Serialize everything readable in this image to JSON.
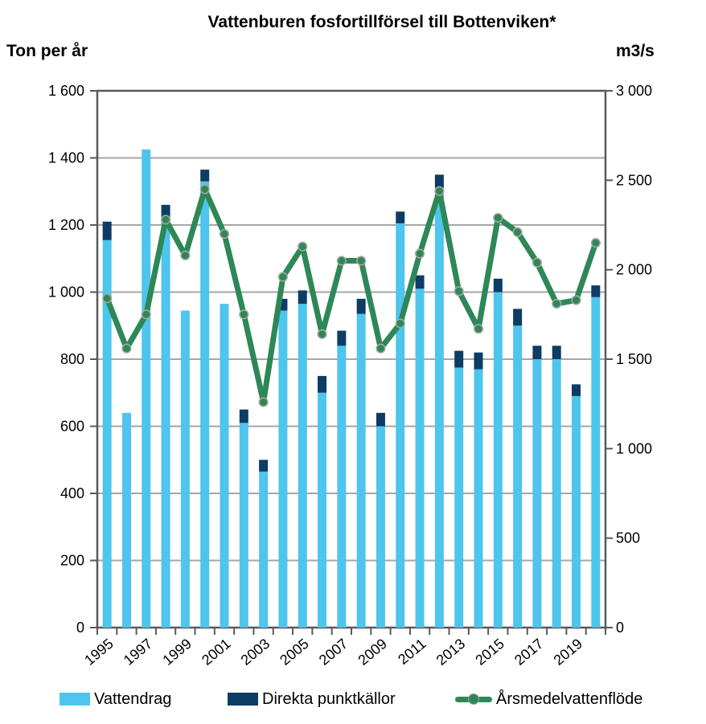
{
  "title": "Vattenburen fosfortillförsel till Bottenviken*",
  "left_axis_unit": "Ton per år",
  "right_axis_unit": "m3/s",
  "legend": {
    "vattendrag": "Vattendrag",
    "punktkallor": "Direkta punktkällor",
    "vattenflode": "Årsmedelvattenflöde"
  },
  "colors": {
    "vattendrag": "#4ec5ec",
    "punktkallor": "#0d3c64",
    "vattenflode": "#2e8757",
    "marker_ring": "#a6a69e",
    "gridline": "#a6a6a6",
    "frame": "#595959"
  },
  "chart_data": {
    "type": "bar",
    "subtype": "stacked-bars-with-line",
    "title": "Vattenburen fosfortillförsel till Bottenviken*",
    "x": [
      1995,
      1996,
      1997,
      1998,
      1999,
      2000,
      2001,
      2002,
      2003,
      2004,
      2005,
      2006,
      2007,
      2008,
      2009,
      2010,
      2011,
      2012,
      2013,
      2014,
      2015,
      2016,
      2017,
      2018,
      2019,
      2020
    ],
    "x_tick_labels": [
      "1995",
      "1997",
      "1999",
      "2001",
      "2003",
      "2005",
      "2007",
      "2009",
      "2011",
      "2013",
      "2015",
      "2017",
      "2019"
    ],
    "series": [
      {
        "name": "Vattendrag",
        "type": "bar",
        "stack": "tons",
        "axis": "left",
        "color": "#4ec5ec",
        "values": [
          1155,
          640,
          1425,
          1220,
          945,
          1330,
          965,
          610,
          465,
          945,
          965,
          700,
          840,
          935,
          600,
          1205,
          1010,
          1310,
          775,
          770,
          1000,
          900,
          800,
          800,
          690,
          985
        ]
      },
      {
        "name": "Direkta punktkällor",
        "type": "bar",
        "stack": "tons",
        "axis": "left",
        "color": "#0d3c64",
        "values": [
          55,
          0,
          0,
          40,
          0,
          35,
          0,
          40,
          35,
          35,
          40,
          50,
          45,
          45,
          40,
          35,
          40,
          40,
          50,
          50,
          40,
          50,
          40,
          40,
          35,
          35
        ]
      },
      {
        "name": "Årsmedelvattenflöde",
        "type": "line",
        "axis": "right",
        "color": "#2e8757",
        "values": [
          1840,
          1560,
          1750,
          2280,
          2080,
          2450,
          2200,
          1750,
          1260,
          1960,
          2130,
          1640,
          2050,
          2050,
          1560,
          1700,
          2090,
          2440,
          1880,
          1670,
          2290,
          2210,
          2040,
          1810,
          1830,
          2150
        ]
      }
    ],
    "left_axis": {
      "label": "Ton per år",
      "min": 0,
      "max": 1600,
      "step": 200,
      "tick_labels": [
        "0",
        "200",
        "400",
        "600",
        "800",
        "1 000",
        "1 200",
        "1 400",
        "1 600"
      ]
    },
    "right_axis": {
      "label": "m3/s",
      "min": 0,
      "max": 3000,
      "step": 500,
      "tick_labels": [
        "0",
        "500",
        "1 000",
        "1 500",
        "2 000",
        "2 500",
        "3 000"
      ]
    },
    "grid": true,
    "legend_position": "bottom"
  }
}
